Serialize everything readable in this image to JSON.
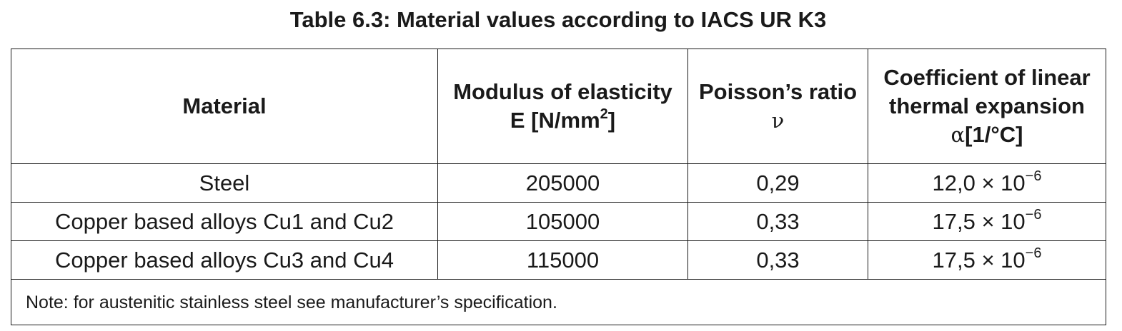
{
  "caption": "Table 6.3: Material values according to IACS UR K3",
  "headers": {
    "material": "Material",
    "modulus_line1": "Modulus of elasticity",
    "modulus_line2_prefix": "E [N/mm",
    "modulus_line2_sup": "2",
    "modulus_line2_suffix": "]",
    "poisson_line1": "Poisson’s ratio",
    "poisson_symbol": "ν",
    "cte_line1": "Coefficient of linear",
    "cte_line2": "thermal expansion",
    "cte_symbol": "α",
    "cte_unit": "[1/°C]"
  },
  "rows": [
    {
      "material": "Steel",
      "modulus": "205000",
      "poisson": "0,29",
      "cte_mantissa": "12,0 × 10",
      "cte_exponent": "−6"
    },
    {
      "material": "Copper based alloys Cu1 and Cu2",
      "modulus": "105000",
      "poisson": "0,33",
      "cte_mantissa": "17,5 × 10",
      "cte_exponent": "−6"
    },
    {
      "material": "Copper based alloys Cu3 and Cu4",
      "modulus": "115000",
      "poisson": "0,33",
      "cte_mantissa": "17,5 × 10",
      "cte_exponent": "−6"
    }
  ],
  "note": "Note: for austenitic stainless steel see manufacturer’s specification."
}
